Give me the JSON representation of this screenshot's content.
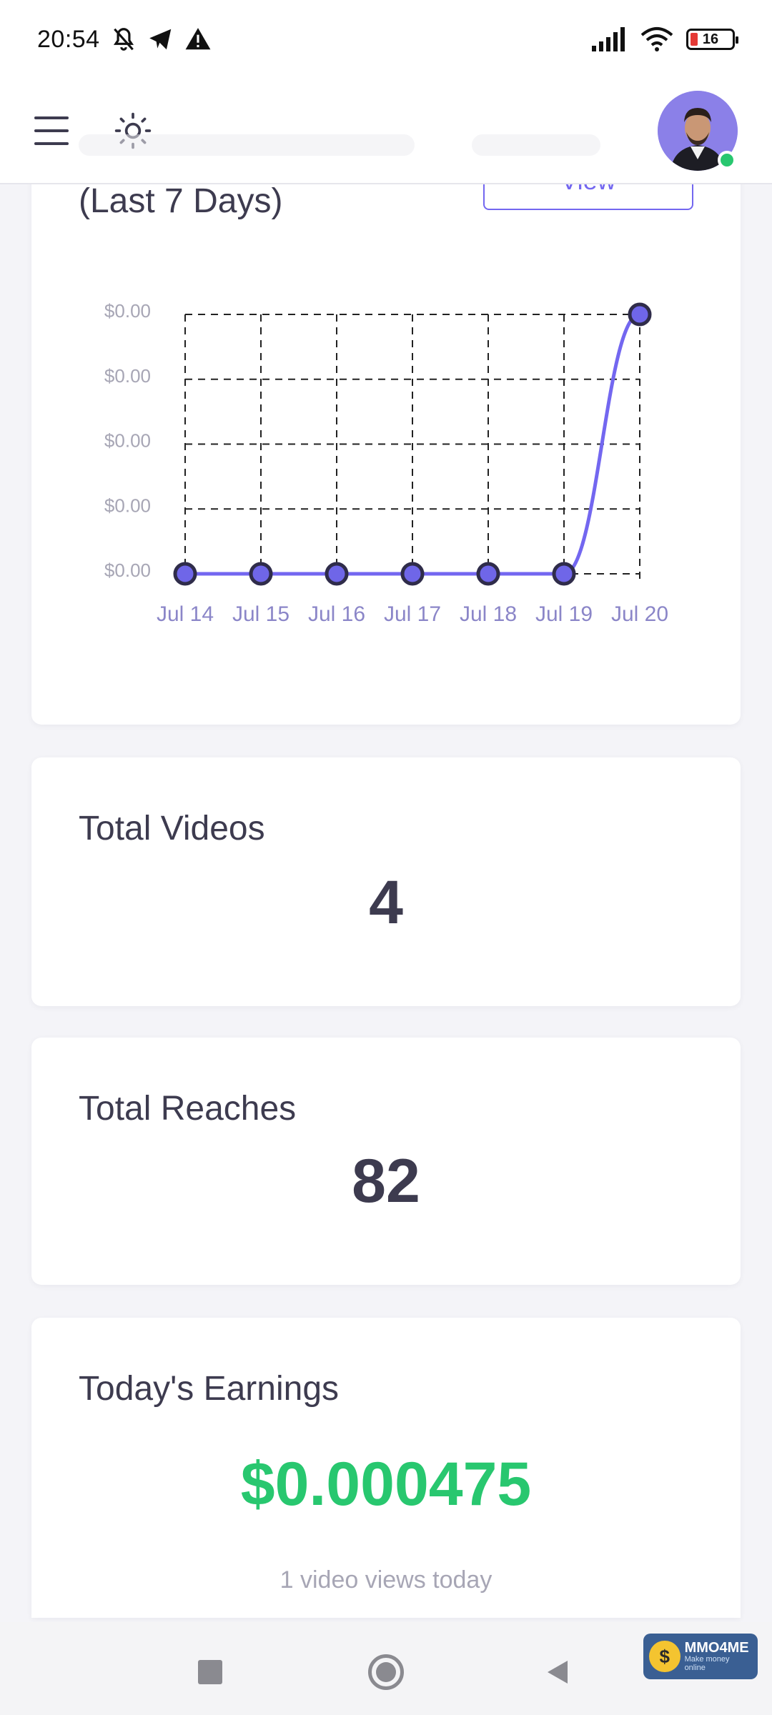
{
  "status_bar": {
    "time": "20:54",
    "battery": "16",
    "icons": [
      "bell-off-icon",
      "telegram-icon",
      "warning-icon",
      "signal-icon",
      "wifi-icon",
      "battery-icon"
    ]
  },
  "header": {
    "icons": [
      "menu-icon",
      "sun-icon",
      "avatar"
    ],
    "online_color": "#28c76f"
  },
  "chart_card": {
    "title": "(Last 7 Days)",
    "view_button": "View"
  },
  "chart_data": {
    "type": "line",
    "title": "(Last 7 Days)",
    "x": [
      "Jul 14",
      "Jul 15",
      "Jul 16",
      "Jul 17",
      "Jul 18",
      "Jul 19",
      "Jul 20"
    ],
    "series": [
      {
        "values": [
          0,
          0,
          0,
          0,
          0,
          0,
          0.000475
        ]
      }
    ],
    "y_tick_labels": [
      "$0.00",
      "$0.00",
      "$0.00",
      "$0.00",
      "$0.00"
    ],
    "ylim": [
      0,
      0.000475
    ],
    "grid": true,
    "grid_style": "dashed",
    "line_color": "#7367f0"
  },
  "stats": {
    "videos": {
      "label": "Total Videos",
      "value": "4"
    },
    "reaches": {
      "label": "Total Reaches",
      "value": "82"
    },
    "earnings": {
      "label": "Today's Earnings",
      "value": "$0.000475",
      "sub": "1 video views today",
      "color": "#28c76f"
    }
  },
  "watermark": {
    "title": "MMO4ME",
    "sub": "Make money online",
    "coin": "$"
  },
  "colors": {
    "accent": "#7367f0",
    "success": "#28c76f",
    "text": "#3d3b4f"
  }
}
